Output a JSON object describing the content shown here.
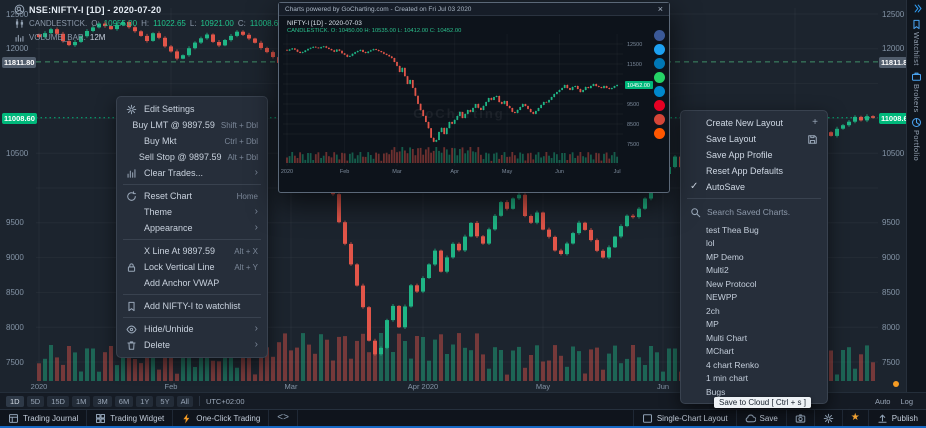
{
  "colors": {
    "up": "#1fb585",
    "down": "#e25549",
    "accent_green": "#00b87b",
    "accent_blue": "#2f9bf0",
    "warn_orange": "#f59b23",
    "gray_badge": "#515d6c"
  },
  "symbol_header": {
    "search_icon": "magnifier-icon",
    "title": "NSE:NIFTY-I [1D] - 2020-07-20",
    "series_icon": "candlestick-icon",
    "series_type": "CANDLESTICK.",
    "o_label": "O:",
    "o_value": "10955.00",
    "h_label": "H:",
    "h_value": "11022.65",
    "l_label": "L:",
    "l_value": "10921.00",
    "c_label": "C:",
    "c_value": "11008.6",
    "volume_icon": "volume-icon",
    "volume_series": "VOLUME_BAR.",
    "volume_value": "12M"
  },
  "context_menu": {
    "items": [
      {
        "icon": "gear-icon",
        "label": "Edit Settings"
      },
      {
        "label": "Buy LMT @ 9897.59",
        "shortcut": "Shift + Dbl"
      },
      {
        "label": "Buy Mkt",
        "shortcut": "Ctrl + Dbl"
      },
      {
        "label": "Sell Stop @ 9897.59",
        "shortcut": "Alt + Dbl"
      },
      {
        "icon": "clear-icon",
        "label": "Clear Trades...",
        "chevron": true
      },
      {
        "divider": true
      },
      {
        "icon": "reset-icon",
        "label": "Reset Chart",
        "shortcut": "Home"
      },
      {
        "label": "Theme",
        "chevron": true
      },
      {
        "label": "Appearance",
        "chevron": true
      },
      {
        "divider": true
      },
      {
        "label": "X Line At 9897.59",
        "shortcut": "Alt + X"
      },
      {
        "icon": "lock-icon",
        "label": "Lock Vertical Line",
        "shortcut": "Alt + Y"
      },
      {
        "label": "Add Anchor VWAP"
      },
      {
        "divider": true
      },
      {
        "icon": "bookmark-icon",
        "label": "Add NIFTY-I to watchlist"
      },
      {
        "divider": true
      },
      {
        "icon": "eye-icon",
        "label": "Hide/Unhide",
        "chevron": true
      },
      {
        "icon": "trash-icon",
        "label": "Delete",
        "chevron": true
      }
    ]
  },
  "layout_menu": {
    "items": [
      {
        "label": "Create New Layout",
        "right_icon": "plus-icon"
      },
      {
        "label": "Save Layout",
        "right_icon": "floppy-icon"
      },
      {
        "label": "Save App Profile"
      },
      {
        "label": "Reset App Defaults"
      },
      {
        "label": "AutoSave",
        "left_icon": "check-icon"
      }
    ],
    "search_icon": "search-icon",
    "search_placeholder": "Search Saved Charts.",
    "saved_charts": [
      "test Thea Bug",
      "lol",
      "MP Demo",
      "Multi2",
      "New Protocol",
      "NEWPP",
      "2ch",
      "MP",
      "Multi Chart",
      "MChart",
      "4 chart Renko",
      "1 min chart",
      "Bugs"
    ]
  },
  "popup": {
    "title": "Charts powered by GoCharting.com - Created on Fri Jul 03 2020",
    "close_label": "×",
    "header_line1": "NIFTY-I [1D] - 2020-07-03",
    "header_line2": "CANDLESTICK. O: 10450.00 H: 10535.00 L: 10412.00 C: 10452.00",
    "watermark": "GoCharting",
    "share_icons": [
      {
        "name": "facebook-icon",
        "color": "#3b5998"
      },
      {
        "name": "twitter-icon",
        "color": "#1da1f2"
      },
      {
        "name": "linkedin-icon",
        "color": "#0077b5"
      },
      {
        "name": "whatsapp-icon",
        "color": "#25d366"
      },
      {
        "name": "telegram-icon",
        "color": "#0088cc"
      },
      {
        "name": "pinterest-icon",
        "color": "#e60023"
      },
      {
        "name": "mail-icon",
        "color": "#d44638"
      },
      {
        "name": "reddit-icon",
        "color": "#ff5700"
      }
    ]
  },
  "sidebar": {
    "collapse_icon": "collapse-icon",
    "tabs": [
      {
        "icon": "bookmark-icon",
        "label": "Watchlist"
      },
      {
        "icon": "briefcase-icon",
        "label": "Brokers"
      },
      {
        "icon": "pie-icon",
        "label": "Portfolio"
      }
    ]
  },
  "timeframe_bar": {
    "buttons": [
      "1D",
      "5D",
      "15D",
      "1M",
      "3M",
      "6M",
      "1Y",
      "5Y",
      "All"
    ],
    "timezone": "UTC+02:00",
    "auto_label": "Auto",
    "log_label": "Log"
  },
  "bottom_bar": {
    "left": [
      {
        "name": "trading-journal-button",
        "icon": "journal-icon",
        "label": "Trading Journal"
      },
      {
        "name": "trading-widget-button",
        "icon": "widget-icon",
        "label": "Trading Widget"
      },
      {
        "name": "one-click-trading-button",
        "icon": "bolt-icon",
        "label": "One-Click Trading"
      },
      {
        "name": "code-editor-button",
        "icon": "code-icon",
        "label": ""
      }
    ],
    "right": [
      {
        "name": "single-chart-layout-button",
        "icon": "grid-icon",
        "label": "Single-Chart Layout"
      },
      {
        "name": "save-button",
        "icon": "cloud-icon",
        "label": "Save"
      },
      {
        "name": "screenshot-button",
        "icon": "camera-icon",
        "label": ""
      },
      {
        "name": "settings-button",
        "icon": "gear-icon",
        "label": ""
      },
      {
        "name": "favorites-button",
        "icon": "star-icon",
        "label": ""
      },
      {
        "name": "publish-button",
        "icon": "upload-icon",
        "label": "Publish"
      }
    ]
  },
  "save_tooltip": "Save to Cloud [ Ctrl + s ]",
  "chart_data": {
    "type": "candlestick",
    "symbol": "NSE:NIFTY-I",
    "interval": "1D",
    "price_ticks": [
      12500,
      12000,
      10500,
      9500,
      9000,
      8500,
      8000,
      7500
    ],
    "level_lines": [
      {
        "price": 11811.8,
        "label": "11811.80",
        "color": "gray",
        "style": "dashed"
      },
      {
        "price": 11008.6,
        "label": "11008.60",
        "color": "green",
        "style": "dotted"
      }
    ],
    "months": [
      {
        "label": "2020",
        "short": "2020",
        "i": 0
      },
      {
        "label": "Feb",
        "short": "Feb",
        "i": 22
      },
      {
        "label": "Mar",
        "short": "Mar",
        "i": 42
      },
      {
        "label": "Apr 2020",
        "short": "Apr",
        "i": 64
      },
      {
        "label": "May",
        "short": "May",
        "i": 84
      },
      {
        "label": "Jun",
        "short": "Jun",
        "i": 104
      },
      {
        "label": "Jul",
        "short": "Jul",
        "i": 126
      }
    ],
    "closes": [
      12168,
      12226,
      12282,
      12216,
      12110,
      12052,
      12098,
      12182,
      12256,
      12308,
      12362,
      12326,
      12282,
      12343,
      12386,
      12310,
      12252,
      12186,
      12113,
      12224,
      12158,
      12035,
      11962,
      11858,
      11908,
      12008,
      12089,
      12151,
      12205,
      12098,
      12048,
      12126,
      12186,
      12246,
      12201,
      12148,
      12086,
      12011,
      11952,
      11881,
      11798,
      11598,
      11403,
      11098,
      11304,
      10891,
      10502,
      10698,
      10302,
      9911,
      9508,
      9197,
      8903,
      8598,
      8288,
      7806,
      7611,
      7702,
      8102,
      8306,
      7998,
      8297,
      8602,
      8512,
      8706,
      8902,
      9101,
      8798,
      9003,
      9198,
      9104,
      9302,
      9498,
      9306,
      9201,
      9406,
      9601,
      9798,
      9702,
      9851,
      9902,
      9598,
      9501,
      9648,
      9402,
      9298,
      9102,
      9051,
      9203,
      9352,
      9501,
      9398,
      9252,
      9098,
      9002,
      9148,
      9302,
      9452,
      9602,
      9581,
      9702,
      9849,
      9998,
      10102,
      10201,
      10302,
      10451,
      10298,
      10203,
      10352,
      10401,
      10252,
      10098,
      10201,
      10352,
      10298,
      10402,
      10502,
      10398,
      10352,
      10298,
      10402,
      10301,
      10249,
      10302,
      10398,
      10452,
      10551,
      10602,
      10698,
      10751,
      10802,
      10749,
      10851,
      10902,
      10952,
      11021,
      10971,
      11032,
      11008.6
    ]
  }
}
